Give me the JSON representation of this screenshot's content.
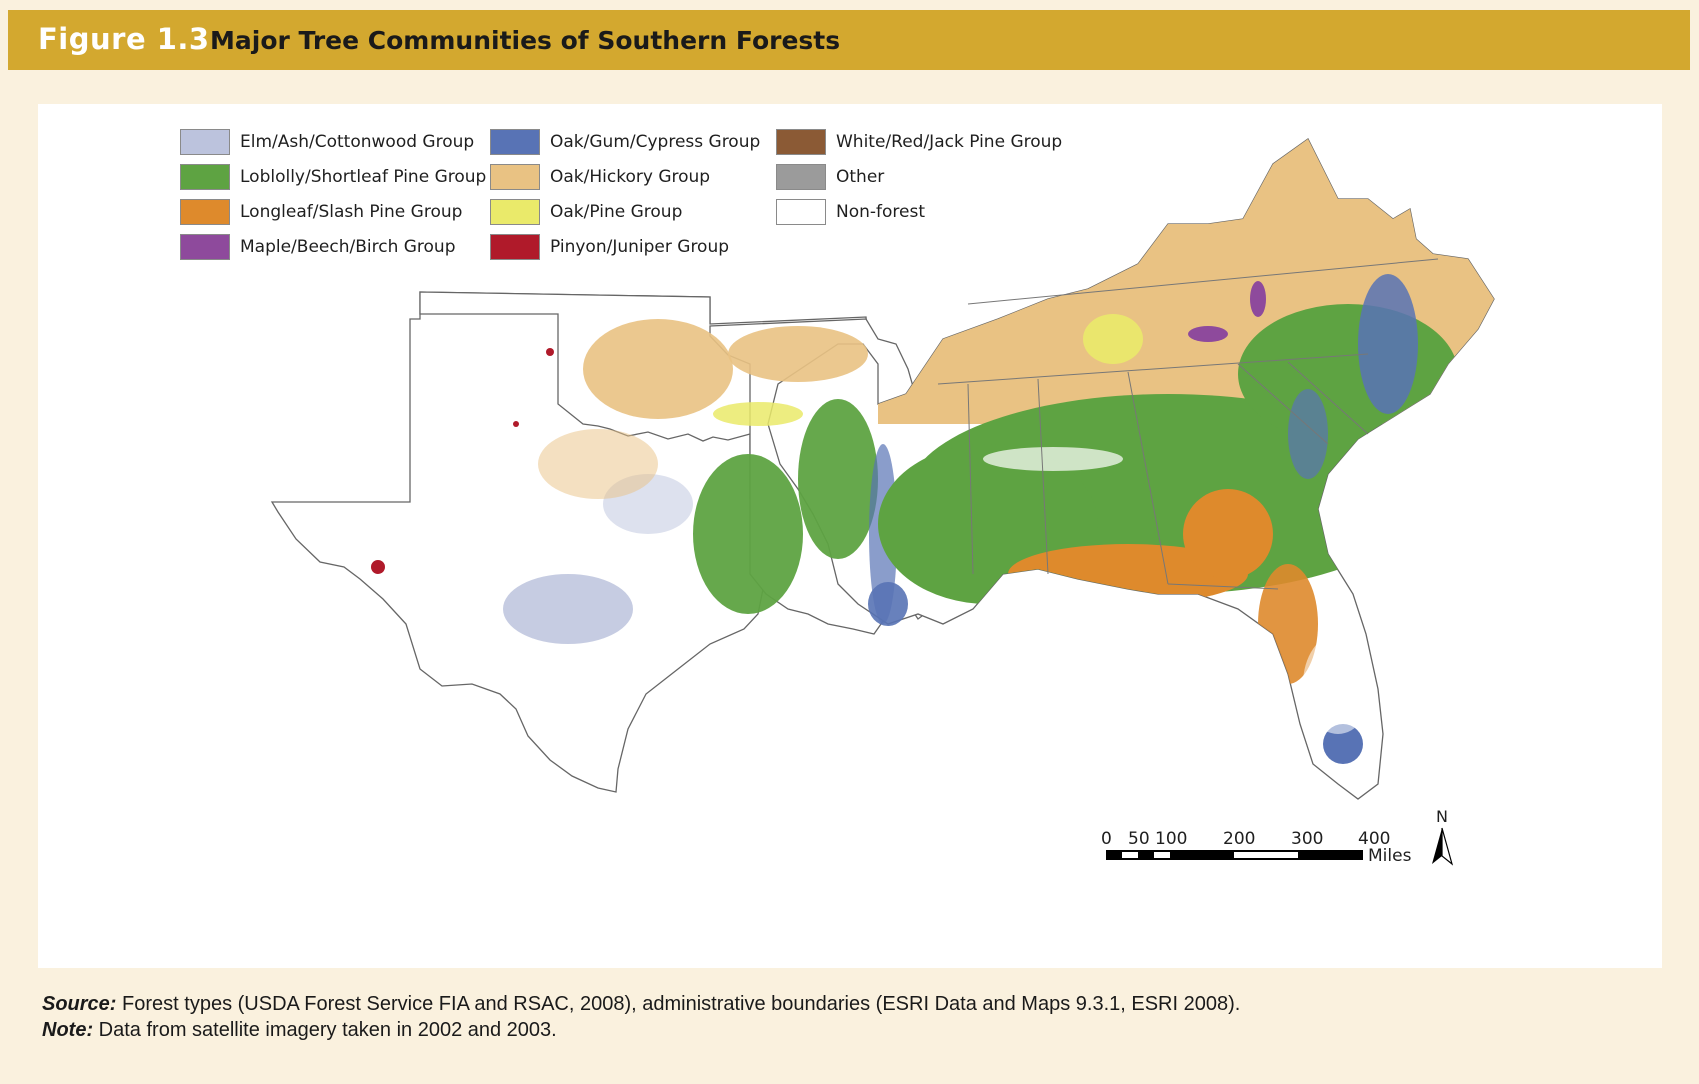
{
  "header": {
    "figure_number": "Figure 1.3",
    "title": "Major Tree Communities of Southern Forests"
  },
  "legend": [
    {
      "label": "Elm/Ash/Cottonwood Group",
      "color": "#bcc3dd"
    },
    {
      "label": "Loblolly/Shortleaf Pine Group",
      "color": "#5ea342"
    },
    {
      "label": "Longleaf/Slash Pine Group",
      "color": "#de8a2c"
    },
    {
      "label": "Maple/Beech/Birch Group",
      "color": "#8e4a9c"
    },
    {
      "label": "Oak/Gum/Cypress Group",
      "color": "#5873b5"
    },
    {
      "label": "Oak/Hickory Group",
      "color": "#e9c283"
    },
    {
      "label": "Oak/Pine Group",
      "color": "#eaea6a"
    },
    {
      "label": "Pinyon/Juniper Group",
      "color": "#b01a2a"
    },
    {
      "label": "White/Red/Jack Pine Group",
      "color": "#8b5a35"
    },
    {
      "label": "Other",
      "color": "#9b9b9b"
    },
    {
      "label": "Non-forest",
      "color": "#ffffff"
    }
  ],
  "scale_bar": {
    "ticks": [
      "0",
      "50",
      "100",
      "200",
      "300",
      "400"
    ],
    "unit": "Miles"
  },
  "north_arrow": {
    "label": "N"
  },
  "footer": {
    "source_label": "Source:",
    "source_text": "Forest types (USDA Forest Service FIA and RSAC, 2008), administrative boundaries (ESRI Data and Maps 9.3.1, ESRI 2008).",
    "note_label": "Note:",
    "note_text": "Data from satellite imagery taken in 2002 and 2003."
  }
}
